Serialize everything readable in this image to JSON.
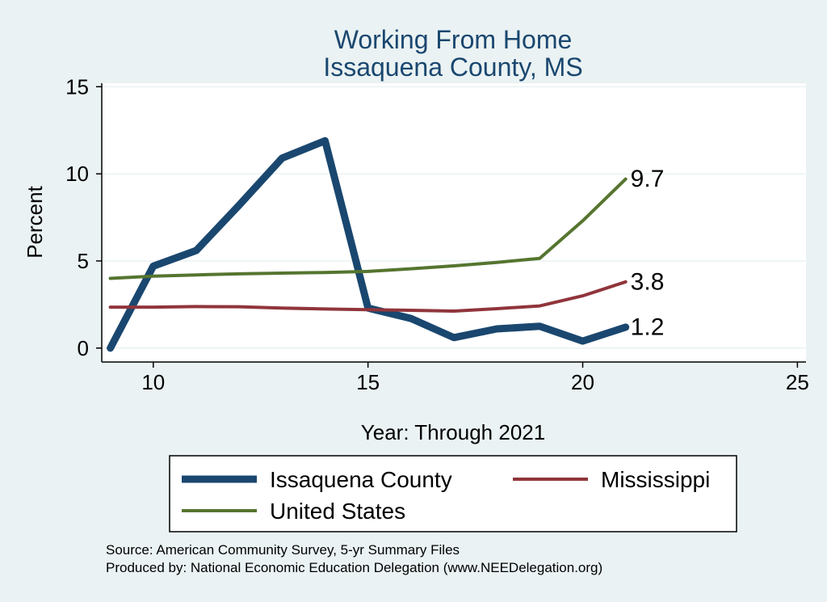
{
  "chart_data": {
    "type": "line",
    "title": [
      "Working From Home",
      "Issaquena County, MS"
    ],
    "xlabel": "Year: Through 2021",
    "ylabel": "Percent",
    "xlim": [
      8.8,
      25.2
    ],
    "ylim": [
      -0.8,
      15.2
    ],
    "xticks": [
      10,
      15,
      20,
      25
    ],
    "yticks": [
      0,
      5,
      10,
      15
    ],
    "grid": true,
    "legend_position": "bottom",
    "series": [
      {
        "name": "Issaquena County",
        "color": "#1a476f",
        "width": 9,
        "x": [
          9,
          10,
          11,
          12,
          13,
          14,
          15,
          16,
          17,
          18,
          19,
          20,
          21
        ],
        "y": [
          0,
          4.7,
          5.6,
          8.2,
          10.9,
          11.9,
          2.3,
          1.7,
          0.6,
          1.1,
          1.25,
          0.4,
          1.2
        ],
        "end_label": "1.2"
      },
      {
        "name": "Mississippi",
        "color": "#90353b",
        "width": 4,
        "x": [
          9,
          10,
          11,
          12,
          13,
          14,
          15,
          16,
          17,
          18,
          19,
          20,
          21
        ],
        "y": [
          2.35,
          2.35,
          2.38,
          2.37,
          2.3,
          2.24,
          2.2,
          2.17,
          2.12,
          2.26,
          2.42,
          3.0,
          3.8
        ],
        "end_label": "3.8"
      },
      {
        "name": "United States",
        "color": "#55752f",
        "width": 4,
        "x": [
          9,
          10,
          11,
          12,
          13,
          14,
          15,
          16,
          17,
          18,
          19,
          20,
          21
        ],
        "y": [
          4.0,
          4.13,
          4.2,
          4.26,
          4.3,
          4.34,
          4.4,
          4.55,
          4.72,
          4.92,
          5.15,
          7.3,
          9.7
        ],
        "end_label": "9.7"
      }
    ]
  },
  "notes": [
    "Source: American Community Survey, 5-yr Summary Files",
    "Produced by: National Economic Education Delegation (www.NEEDelegation.org)"
  ]
}
